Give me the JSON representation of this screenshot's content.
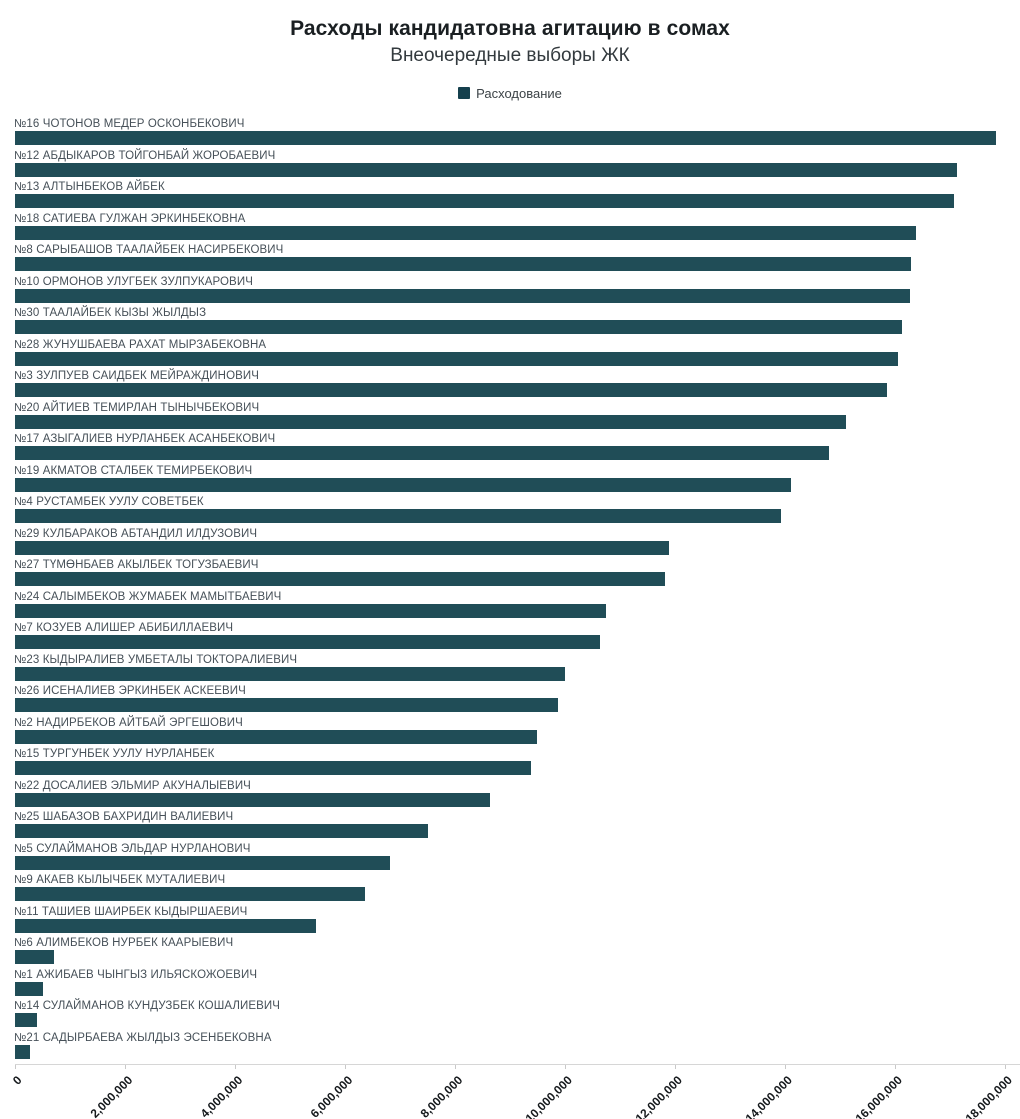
{
  "header": {
    "title": "Расходы кандидатовна агитацию в сомах",
    "subtitle": "Внеочередные выборы ЖК"
  },
  "legend": {
    "label": "Расходование"
  },
  "colors": {
    "bar": "#204d57",
    "legend_swatch": "#15404d",
    "label_text": "#465058",
    "axis_line": "#d6d6d6",
    "tick_text": "#15191c"
  },
  "chart_data": {
    "type": "bar",
    "orientation": "horizontal",
    "title": "Расходы кандидатовна агитацию в сомах",
    "subtitle": "Внеочередные выборы ЖК",
    "series_name": "Расходование",
    "xlabel": "",
    "ylabel": "",
    "xlim": [
      0,
      18000000
    ],
    "grid": false,
    "legend_position": "top-center",
    "x_tick_values": [
      0,
      2000000,
      4000000,
      6000000,
      8000000,
      10000000,
      12000000,
      14000000,
      16000000,
      18000000
    ],
    "x_tick_labels": [
      "0",
      "2,000,000",
      "4,000,000",
      "6,000,000",
      "8,000,000",
      "10,000,000",
      "12,000,000",
      "14,000,000",
      "16,000,000",
      "18,000,000"
    ],
    "bars": [
      {
        "label": "№16 ЧОТОНОВ МЕДЕР ОСКОНБЕКОВИЧ",
        "value": 17840000
      },
      {
        "label": "№12 АБДЫКАРОВ ТОЙГОНБАЙ ЖОРОБАЕВИЧ",
        "value": 17130000
      },
      {
        "label": "№13 АЛТЫНБЕКОВ АЙБЕК",
        "value": 17070000
      },
      {
        "label": "№18 САТИЕВА ГУЛЖАН ЭРКИНБЕКОВНА",
        "value": 16380000
      },
      {
        "label": "№8 САРЫБАШОВ ТААЛАЙБЕК НАСИРБЕКОВИЧ",
        "value": 16290000
      },
      {
        "label": "№10 ОРМОНОВ УЛУГБЕК ЗУЛПУКАРОВИЧ",
        "value": 16270000
      },
      {
        "label": "№30 ТААЛАЙБЕК КЫЗЫ ЖЫЛДЫЗ",
        "value": 16130000
      },
      {
        "label": "№28 ЖУНУШБАЕВА РАХАТ МЫРЗАБЕКОВНА",
        "value": 16050000
      },
      {
        "label": "№3 ЗУЛПУЕВ САИДБЕК МЕЙРАЖДИНОВИЧ",
        "value": 15850000
      },
      {
        "label": "№20 АЙТИЕВ ТЕМИРЛАН ТЫНЫЧБЕКОВИЧ",
        "value": 15110000
      },
      {
        "label": "№17 АЗЫГАЛИЕВ НУРЛАНБЕК АСАНБЕКОВИЧ",
        "value": 14800000
      },
      {
        "label": "№19 АКМАТОВ СТАЛБЕК ТЕМИРБЕКОВИЧ",
        "value": 14110000
      },
      {
        "label": "№4 РУСТАМБЕК УУЛУ СОВЕТБЕК",
        "value": 13930000
      },
      {
        "label": "№29 КУЛБАРАКОВ АБТАНДИЛ ИЛДУЗОВИЧ",
        "value": 11890000
      },
      {
        "label": "№27 ТҮМӨНБАЕВ АКЫЛБЕК ТОГУЗБАЕВИЧ",
        "value": 11820000
      },
      {
        "label": "№24 САЛЫМБЕКОВ ЖУМАБЕК МАМЫТБАЕВИЧ",
        "value": 10750000
      },
      {
        "label": "№7 КОЗУЕВ АЛИШЕР АБИБИЛЛАЕВИЧ",
        "value": 10640000
      },
      {
        "label": "№23 КЫДЫРАЛИЕВ УМБЕТАЛЫ ТОКТОРАЛИЕВИЧ",
        "value": 10000000
      },
      {
        "label": "№26 ИСЕНАЛИЕВ ЭРКИНБЕК АСКЕЕВИЧ",
        "value": 9870000
      },
      {
        "label": "№2 НАДИРБЕКОВ АЙТБАЙ ЭРГЕШОВИЧ",
        "value": 9490000
      },
      {
        "label": "№15 ТУРГУНБЕК УУЛУ НУРЛАНБЕК",
        "value": 9380000
      },
      {
        "label": "№22 ДОСАЛИЕВ ЭЛЬМИР АКУНАЛЫЕВИЧ",
        "value": 8640000
      },
      {
        "label": "№25 ШАБАЗОВ БАХРИДИН ВАЛИЕВИЧ",
        "value": 7510000
      },
      {
        "label": "№5 СУЛАЙМАНОВ ЭЛЬДАР НУРЛАНОВИЧ",
        "value": 6820000
      },
      {
        "label": "№9 АКАЕВ КЫЛЫЧБЕК МУТАЛИЕВИЧ",
        "value": 6360000
      },
      {
        "label": "№11 ТАШИЕВ ШАИРБЕК КЫДЫРШАЕВИЧ",
        "value": 5470000
      },
      {
        "label": "№6 АЛИМБЕКОВ НУРБЕК КААРЫЕВИЧ",
        "value": 710000
      },
      {
        "label": "№1 АЖИБАЕВ ЧЫНГЫЗ ИЛЬЯСКОЖОЕВИЧ",
        "value": 510000
      },
      {
        "label": "№14 СУЛАЙМАНОВ КУНДУЗБЕК КОШАЛИЕВИЧ",
        "value": 400000
      },
      {
        "label": "№21 САДЫРБАЕВА ЖЫЛДЫЗ ЭСЕНБЕКОВНА",
        "value": 270000
      }
    ]
  }
}
